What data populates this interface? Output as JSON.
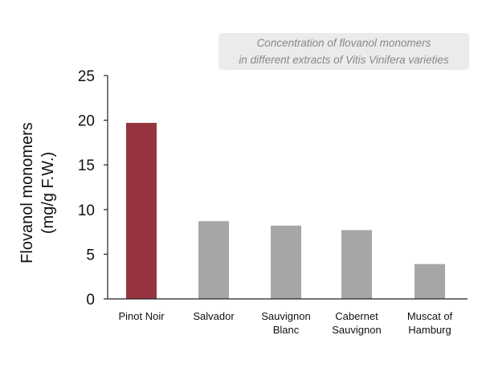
{
  "chart_data": {
    "type": "bar",
    "title": [
      "Concentration of flovanol monomers",
      "in different extracts of Vitis Vinifera varieties"
    ],
    "ylabel": [
      "Flovanol monomers",
      "(mg/g F.W.)"
    ],
    "xlabel": "",
    "ylim": [
      0,
      25
    ],
    "yticks": [
      0,
      5,
      10,
      15,
      20,
      25
    ],
    "grid": false,
    "categories": [
      [
        "Pinot Noir"
      ],
      [
        "Salvador"
      ],
      [
        "Sauvignon",
        "Blanc"
      ],
      [
        "Cabernet",
        "Sauvignon"
      ],
      [
        "Muscat of",
        "Hamburg"
      ]
    ],
    "values": [
      19.7,
      8.7,
      8.2,
      7.7,
      3.9
    ],
    "colors": [
      "#96353f",
      "#a6a6a6",
      "#a6a6a6",
      "#a6a6a6",
      "#a6a6a6"
    ],
    "title_box_color": "#ebebeb",
    "axis_color": "#222222"
  }
}
